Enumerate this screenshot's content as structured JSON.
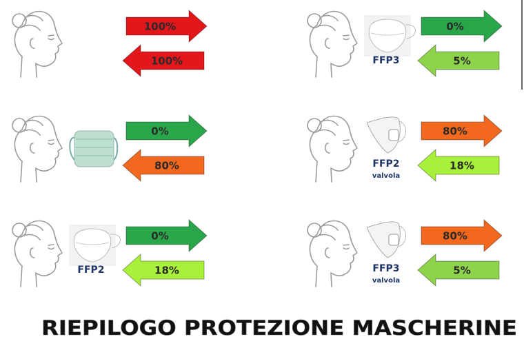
{
  "title": "RIEPILOGO PROTEZIONE MASCHERINE",
  "panels": [
    {
      "out": {
        "label": "100%",
        "color": "#e3161b"
      },
      "in": {
        "label": "100%",
        "color": "#e3161b"
      }
    },
    {
      "mask_label": "FFP3",
      "out": {
        "label": "0%",
        "color": "#2aa64a"
      },
      "in": {
        "label": "5%",
        "color": "#8fd24c"
      }
    },
    {
      "out": {
        "label": "0%",
        "color": "#2aa64a"
      },
      "in": {
        "label": "80%",
        "color": "#f2681e"
      }
    },
    {
      "mask_label": "FFP2",
      "mask_sublabel": "valvola",
      "out": {
        "label": "80%",
        "color": "#f2681e"
      },
      "in": {
        "label": "18%",
        "color": "#a8f03a"
      }
    },
    {
      "mask_label": "FFP2",
      "out": {
        "label": "0%",
        "color": "#2aa64a"
      },
      "in": {
        "label": "18%",
        "color": "#a8f03a"
      }
    },
    {
      "mask_label": "FFP3",
      "mask_sublabel": "valvola",
      "out": {
        "label": "80%",
        "color": "#f2681e"
      },
      "in": {
        "label": "5%",
        "color": "#8fd24c"
      }
    }
  ]
}
